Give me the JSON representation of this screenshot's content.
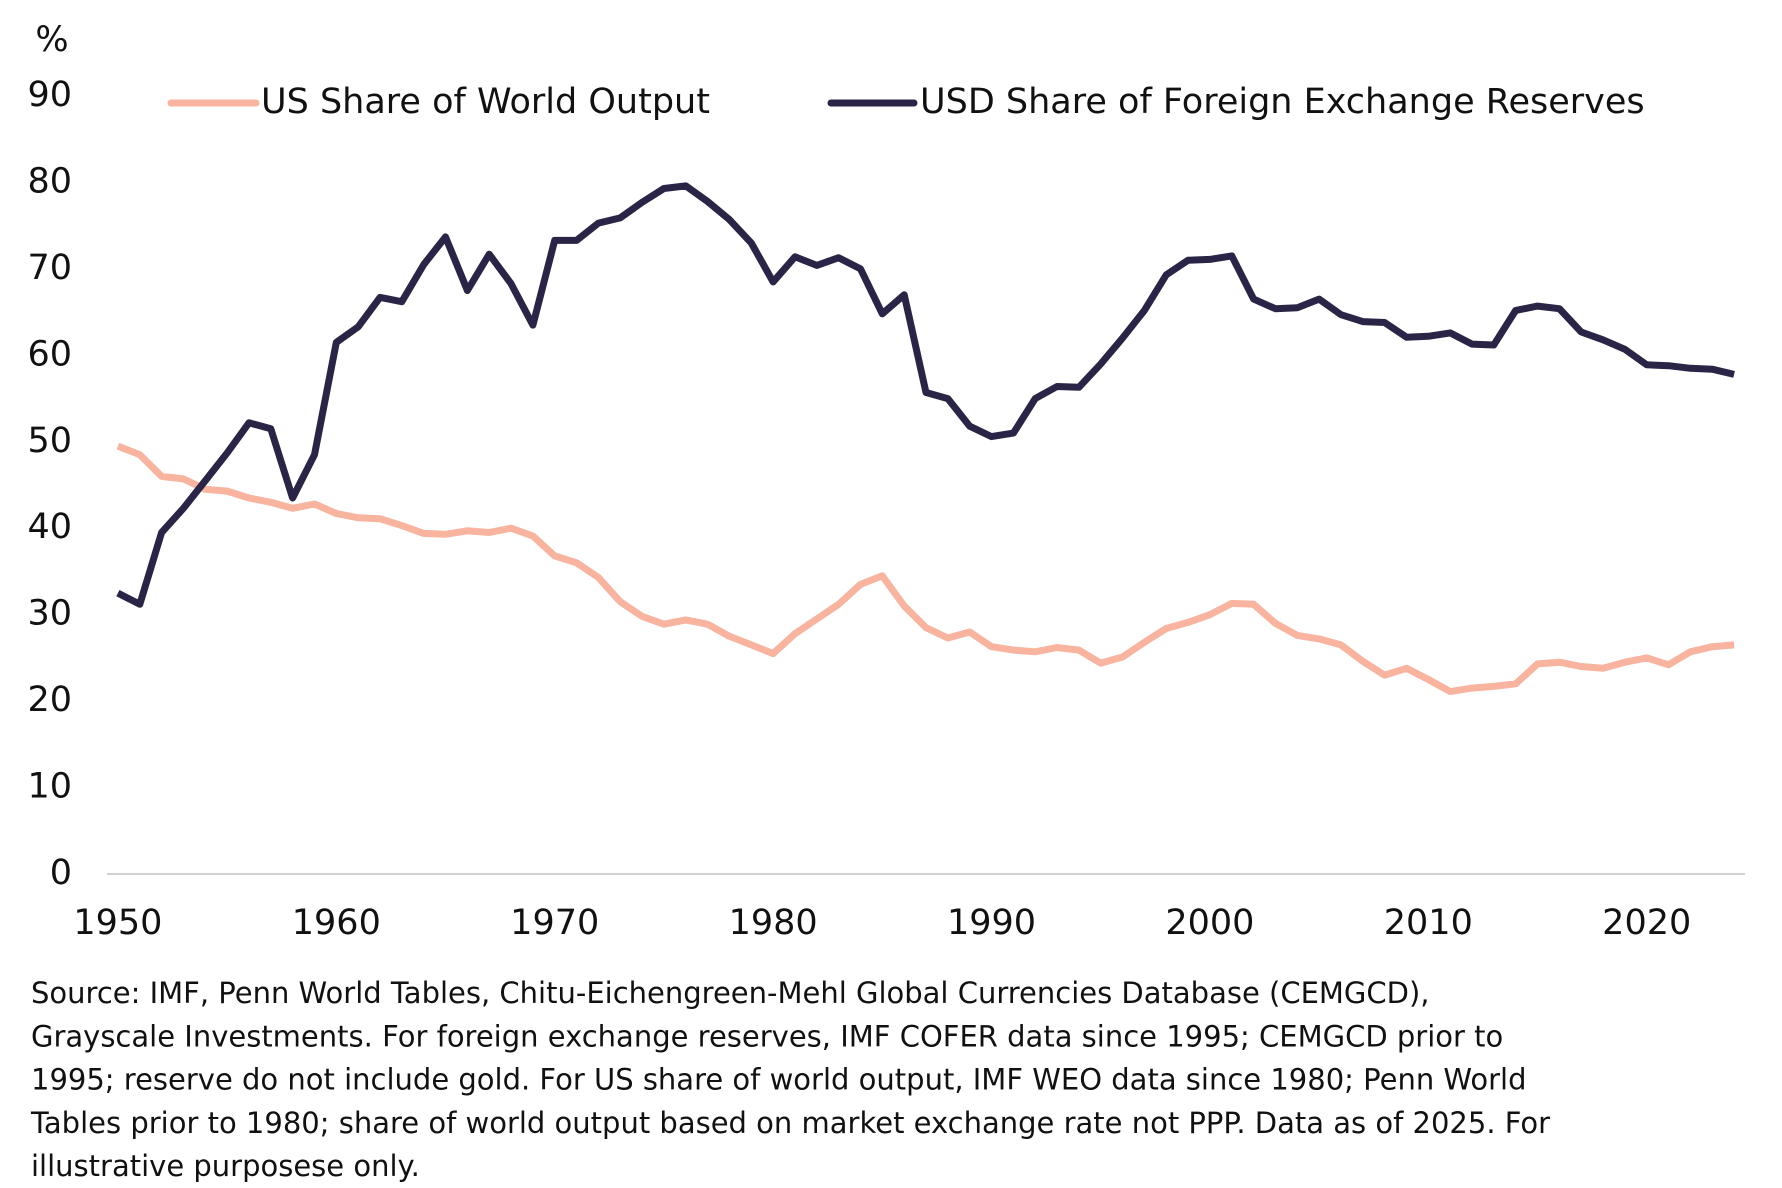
{
  "chart_data": {
    "type": "line",
    "y_label": "%",
    "x": [
      1950,
      1951,
      1952,
      1953,
      1954,
      1955,
      1956,
      1957,
      1958,
      1959,
      1960,
      1961,
      1962,
      1963,
      1964,
      1965,
      1966,
      1967,
      1968,
      1969,
      1970,
      1971,
      1972,
      1973,
      1974,
      1975,
      1976,
      1977,
      1978,
      1979,
      1980,
      1981,
      1982,
      1983,
      1984,
      1985,
      1986,
      1987,
      1988,
      1989,
      1990,
      1991,
      1992,
      1993,
      1994,
      1995,
      1996,
      1997,
      1998,
      1999,
      2000,
      2001,
      2002,
      2003,
      2004,
      2005,
      2006,
      2007,
      2008,
      2009,
      2010,
      2011,
      2012,
      2013,
      2014,
      2015,
      2016,
      2017,
      2018,
      2019,
      2020,
      2021,
      2022,
      2023,
      2024
    ],
    "series": [
      {
        "name": "US Share of World Output",
        "color": "#f8b49e",
        "values": [
          49.5,
          48.5,
          46,
          45.7,
          44.5,
          44.3,
          43.5,
          43,
          42.3,
          42.8,
          41.7,
          41.2,
          41.1,
          40.3,
          39.4,
          39.3,
          39.7,
          39.5,
          40,
          39.1,
          36.8,
          36,
          34.3,
          31.5,
          29.8,
          28.9,
          29.4,
          28.9,
          27.5,
          26.5,
          25.5,
          27.8,
          29.5,
          31.2,
          33.5,
          34.5,
          31,
          28.5,
          27.3,
          28,
          26.3,
          25.9,
          25.7,
          26.2,
          25.9,
          24.4,
          25.1,
          26.8,
          28.4,
          29.1,
          30,
          31.3,
          31.2,
          29,
          27.6,
          27.2,
          26.5,
          24.6,
          23,
          23.8,
          22.5,
          21.1,
          21.5,
          21.7,
          22,
          24.3,
          24.5,
          24,
          23.8,
          24.5,
          25,
          24.2,
          25.7,
          26.3,
          26.5
        ]
      },
      {
        "name": "USD Share of Foreign Exchange Reserves",
        "color": "#2a2546",
        "values": [
          32.5,
          31.2,
          39.5,
          42.3,
          45.5,
          48.7,
          52.2,
          51.5,
          43.5,
          48.5,
          61.5,
          63.3,
          66.7,
          66.2,
          70.5,
          73.7,
          67.5,
          71.7,
          68.3,
          63.5,
          73.3,
          73.3,
          75.3,
          75.9,
          77.7,
          79.3,
          79.6,
          77.8,
          75.7,
          73,
          68.5,
          71.4,
          70.4,
          71.3,
          70,
          64.8,
          67,
          55.7,
          55,
          51.8,
          50.6,
          51,
          55,
          56.4,
          56.3,
          59,
          62,
          65.2,
          69.3,
          71,
          71.1,
          71.5,
          66.5,
          65.4,
          65.5,
          66.5,
          64.7,
          63.9,
          63.8,
          62.1,
          62.2,
          62.6,
          61.3,
          61.2,
          65.2,
          65.7,
          65.4,
          62.7,
          61.8,
          60.7,
          58.9,
          58.8,
          58.5,
          58.4,
          57.8
        ]
      }
    ],
    "xlim": [
      1949.5,
      2024.5
    ],
    "xticks": [
      1950,
      1960,
      1970,
      1980,
      1990,
      2000,
      2010,
      2020
    ],
    "ylim": [
      0,
      90
    ],
    "yticks": [
      0,
      10,
      20,
      30,
      40,
      50,
      60,
      70,
      80,
      90
    ],
    "footnote": [
      "Source: IMF, Penn World Tables, Chitu-Eichengreen-Mehl Global Currencies Database (CEMGCD),",
      "Grayscale Investments. For foreign exchange reserves, IMF COFER data since 1995; CEMGCD prior to",
      "1995; reserve do not include gold. For US share of world output, IMF WEO data since 1980; Penn World",
      "Tables prior to 1980; share of world output based on market exchange rate not PPP. Data as of 2025. For",
      "illustrative purposese only."
    ]
  }
}
